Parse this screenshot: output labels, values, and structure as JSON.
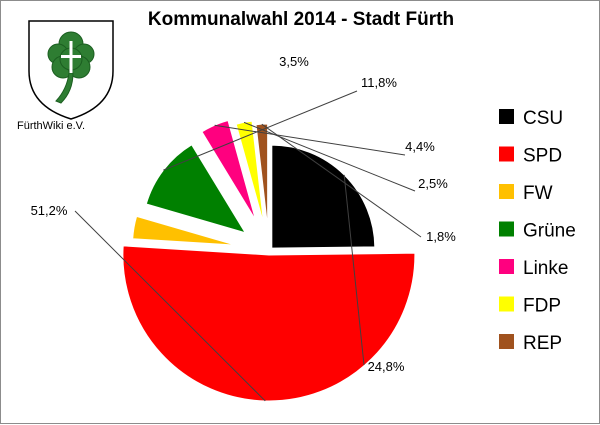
{
  "chart_data": {
    "type": "pie",
    "title": "Kommunalwahl 2014 - Stadt Fürth",
    "categories": [
      "CSU",
      "SPD",
      "FW",
      "Grüne",
      "Linke",
      "FDP",
      "REP"
    ],
    "values": [
      24.8,
      51.2,
      3.5,
      11.8,
      4.4,
      2.5,
      1.8
    ],
    "value_labels": [
      "24,8%",
      "51,2%",
      "3,5%",
      "11,8%",
      "4,4%",
      "2,5%",
      "1,8%"
    ],
    "colors": [
      "#000000",
      "#ff0000",
      "#ffc000",
      "#008000",
      "#ff007f",
      "#ffff00",
      "#a0521e"
    ],
    "exploded": true,
    "legend_position": "right"
  },
  "logo": {
    "caption": "FürthWiki e.V.",
    "icon": "cloverleaf-coat-of-arms"
  }
}
